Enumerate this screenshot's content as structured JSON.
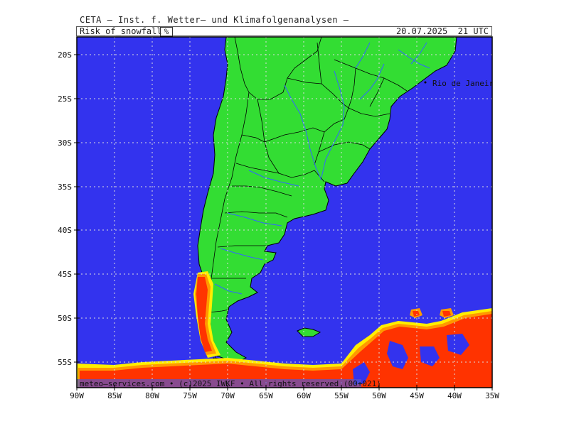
{
  "header": {
    "institute_line": "CETA — Inst. f. Wetter— und Klimafolgenanalysen —",
    "product": "Risk_of_snowfall",
    "unit": "%",
    "valid_time": "20.07.2025  21 UTC"
  },
  "map": {
    "region": "South America (southern cone)",
    "lat_labels": [
      "20S",
      "25S",
      "30S",
      "35S",
      "40S",
      "45S",
      "50S",
      "55S"
    ],
    "lon_labels": [
      "90W",
      "85W",
      "80W",
      "75W",
      "70W",
      "65W",
      "60W",
      "55W",
      "50W",
      "45W",
      "40W",
      "35W"
    ],
    "city_label": "Rio de Janeiro",
    "copyright": "meteo—services.com • (c)2025 IWKF • All rights reserved (00+021)",
    "colors": {
      "ocean": "#3333ee",
      "land": "#33dd33",
      "risk_high": "#ff3300",
      "risk_mid": "#ff9900",
      "risk_low": "#ffee00",
      "borders": "#000000",
      "rivers": "#3366ff",
      "grid": "#dddddd"
    }
  }
}
